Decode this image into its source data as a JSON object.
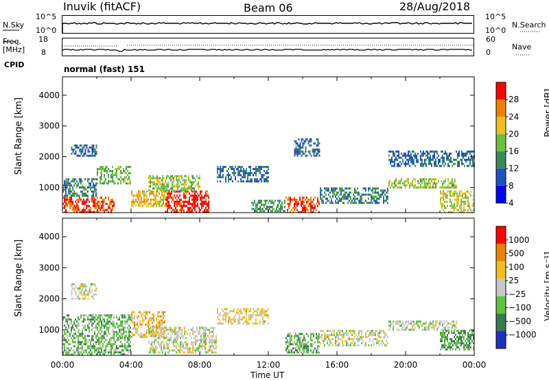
{
  "header": {
    "station": "Inuvik (fitACF)",
    "beam": "Beam 06",
    "date": "28/Aug/2018"
  },
  "nsky_panel": {
    "left_label": "N.Sky",
    "right_label": "N.Search",
    "left_ticks": [
      "10^5",
      "10^0"
    ],
    "right_ticks": [
      "10^5",
      "10^0"
    ]
  },
  "freq_panel": {
    "left_label": "Freq.",
    "left_unit": "[MHz]",
    "right_label": "Nave",
    "left_ticks": [
      "18",
      "8"
    ],
    "right_ticks": [
      "60",
      "0"
    ]
  },
  "cpid_panel": {
    "label": "CPID",
    "text": "normal (fast) 151"
  },
  "power_panel": {
    "ylabel": "Slant Range [km]",
    "yticks": [
      "4000",
      "3000",
      "2000",
      "1000"
    ],
    "colorbar_label": "Power [dB]",
    "colorbar_ticks": [
      "28",
      "24",
      "20",
      "16",
      "12",
      "8",
      "4"
    ],
    "colors": [
      "#0000ff",
      "#2050c0",
      "#3a8a5a",
      "#6cc040",
      "#f0c020",
      "#f08000",
      "#ff0000"
    ]
  },
  "velocity_panel": {
    "ylabel": "Slant Range [km]",
    "yticks": [
      "4000",
      "3000",
      "2000",
      "1000"
    ],
    "colorbar_label": "Velocity [m s⁻¹]",
    "colorbar_ticks": [
      "1000",
      "500",
      "100",
      "25",
      "−25",
      "−100",
      "−500",
      "−1000"
    ],
    "colors": [
      "#2030c0",
      "#3a7a50",
      "#60c040",
      "#c8c8c8",
      "#f0c020",
      "#f08000",
      "#ff0000"
    ]
  },
  "xaxis": {
    "label": "Time UT",
    "ticks": [
      "00:00",
      "04:00",
      "08:00",
      "12:00",
      "16:00",
      "20:00",
      "00:00"
    ]
  },
  "chart_data": [
    {
      "type": "heatmap",
      "title": "Inuvik (fitACF)",
      "xlabel": "Time UT",
      "ylabel": "Slant Range [km]",
      "xlim": [
        0,
        24
      ],
      "ylim": [
        180,
        4600
      ],
      "colorbar": "Power [dB]",
      "zlim": [
        0,
        30
      ],
      "regions": [
        {
          "x": [
            0,
            3
          ],
          "y": [
            200,
            700
          ],
          "value": 26
        },
        {
          "x": [
            0,
            2
          ],
          "y": [
            700,
            1300
          ],
          "value": 10
        },
        {
          "x": [
            0.5,
            2
          ],
          "y": [
            2000,
            2400
          ],
          "value": 8
        },
        {
          "x": [
            2,
            4
          ],
          "y": [
            1100,
            1700
          ],
          "value": 14
        },
        {
          "x": [
            4,
            6
          ],
          "y": [
            400,
            900
          ],
          "value": 20
        },
        {
          "x": [
            6,
            8.5
          ],
          "y": [
            200,
            900
          ],
          "value": 28
        },
        {
          "x": [
            5,
            8
          ],
          "y": [
            900,
            1400
          ],
          "value": 16
        },
        {
          "x": [
            9,
            12
          ],
          "y": [
            1200,
            1700
          ],
          "value": 8
        },
        {
          "x": [
            11,
            13
          ],
          "y": [
            200,
            600
          ],
          "value": 12
        },
        {
          "x": [
            13,
            15
          ],
          "y": [
            200,
            700
          ],
          "value": 26
        },
        {
          "x": [
            13.5,
            15
          ],
          "y": [
            2000,
            2600
          ],
          "value": 8
        },
        {
          "x": [
            15,
            19
          ],
          "y": [
            500,
            1000
          ],
          "value": 10
        },
        {
          "x": [
            19,
            23
          ],
          "y": [
            1000,
            1300
          ],
          "value": 16
        },
        {
          "x": [
            19,
            24
          ],
          "y": [
            1700,
            2200
          ],
          "value": 8
        },
        {
          "x": [
            22,
            24
          ],
          "y": [
            200,
            900
          ],
          "value": 18
        }
      ]
    },
    {
      "type": "heatmap",
      "title": "Inuvik (fitACF)",
      "xlabel": "Time UT",
      "ylabel": "Slant Range [km]",
      "xlim": [
        0,
        24
      ],
      "ylim": [
        180,
        4600
      ],
      "colorbar": "Velocity [m s⁻¹]",
      "zlim": [
        -1000,
        1000
      ],
      "regions": [
        {
          "x": [
            0,
            4
          ],
          "y": [
            200,
            1500
          ],
          "value": -300
        },
        {
          "x": [
            0.5,
            2
          ],
          "y": [
            2000,
            2500
          ],
          "value": 0
        },
        {
          "x": [
            4,
            6
          ],
          "y": [
            800,
            1600
          ],
          "value": 300
        },
        {
          "x": [
            5,
            9
          ],
          "y": [
            300,
            1100
          ],
          "value": 0
        },
        {
          "x": [
            9,
            12
          ],
          "y": [
            1200,
            1700
          ],
          "value": 200
        },
        {
          "x": [
            13,
            15
          ],
          "y": [
            300,
            900
          ],
          "value": -300
        },
        {
          "x": [
            15,
            19
          ],
          "y": [
            500,
            1000
          ],
          "value": 0
        },
        {
          "x": [
            19,
            23
          ],
          "y": [
            1000,
            1300
          ],
          "value": -50
        },
        {
          "x": [
            22,
            24
          ],
          "y": [
            400,
            1000
          ],
          "value": -400
        }
      ]
    }
  ]
}
